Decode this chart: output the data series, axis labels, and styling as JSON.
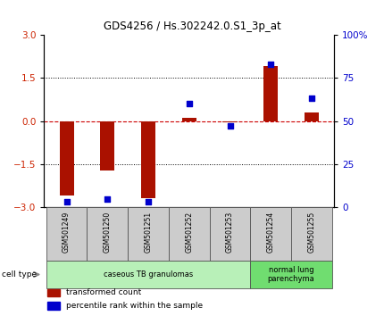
{
  "title": "GDS4256 / Hs.302242.0.S1_3p_at",
  "samples": [
    "GSM501249",
    "GSM501250",
    "GSM501251",
    "GSM501252",
    "GSM501253",
    "GSM501254",
    "GSM501255"
  ],
  "transformed_count": [
    -2.6,
    -1.72,
    -2.68,
    0.1,
    -0.05,
    1.9,
    0.3
  ],
  "percentile_rank": [
    3.0,
    5.0,
    3.0,
    60.0,
    47.0,
    83.0,
    63.0
  ],
  "ylim_left": [
    -3,
    3
  ],
  "ylim_right": [
    0,
    100
  ],
  "left_yticks": [
    -3,
    -1.5,
    0,
    1.5,
    3
  ],
  "right_yticks": [
    0,
    25,
    50,
    75,
    100
  ],
  "right_yticklabels": [
    "0",
    "25",
    "50",
    "75",
    "100%"
  ],
  "bar_color": "#aa1100",
  "scatter_color": "#0000cc",
  "hline_color": "#cc0000",
  "dotted_color": "#000000",
  "cell_type_groups": [
    {
      "label": "caseous TB granulomas",
      "indices": [
        0,
        1,
        2,
        3,
        4
      ],
      "color": "#b8f0b8"
    },
    {
      "label": "normal lung\nparenchyma",
      "indices": [
        5,
        6
      ],
      "color": "#70dd70"
    }
  ],
  "cell_type_label": "cell type",
  "legend_items": [
    {
      "color": "#aa1100",
      "label": "transformed count"
    },
    {
      "color": "#0000cc",
      "label": "percentile rank within the sample"
    }
  ],
  "bar_width": 0.35,
  "scatter_size": 22,
  "sample_box_color": "#cccccc",
  "fig_bg": "#ffffff"
}
